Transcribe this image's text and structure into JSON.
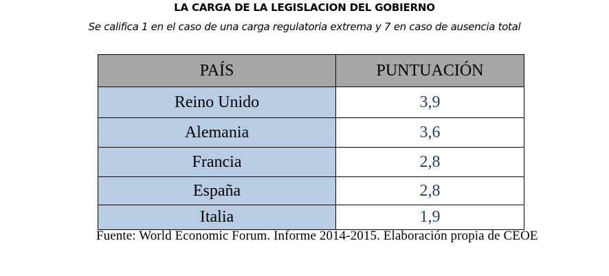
{
  "header": {
    "title": "LA CARGA DE LA LEGISLACION DEL GOBIERNO",
    "subtitle": "Se califica 1 en el caso de una carga regulatoria extrema y 7 en caso de ausencia total"
  },
  "table": {
    "columns": [
      "PAÍS",
      "PUNTUACIÓN"
    ],
    "rows": [
      {
        "country": "Reino Unido",
        "score": "3,9"
      },
      {
        "country": "Alemania",
        "score": "3,6"
      },
      {
        "country": "Francia",
        "score": "2,8"
      },
      {
        "country": "España",
        "score": "2,8"
      },
      {
        "country": "Italia",
        "score": "1,9"
      }
    ]
  },
  "source": "Fuente: World Economic Forum. Informe 2014-2015. Elaboración propia de CEOE",
  "colors": {
    "header_bg": "#a6a6a6",
    "country_bg": "#b8cce4",
    "score_text": "#1f3f7a"
  }
}
